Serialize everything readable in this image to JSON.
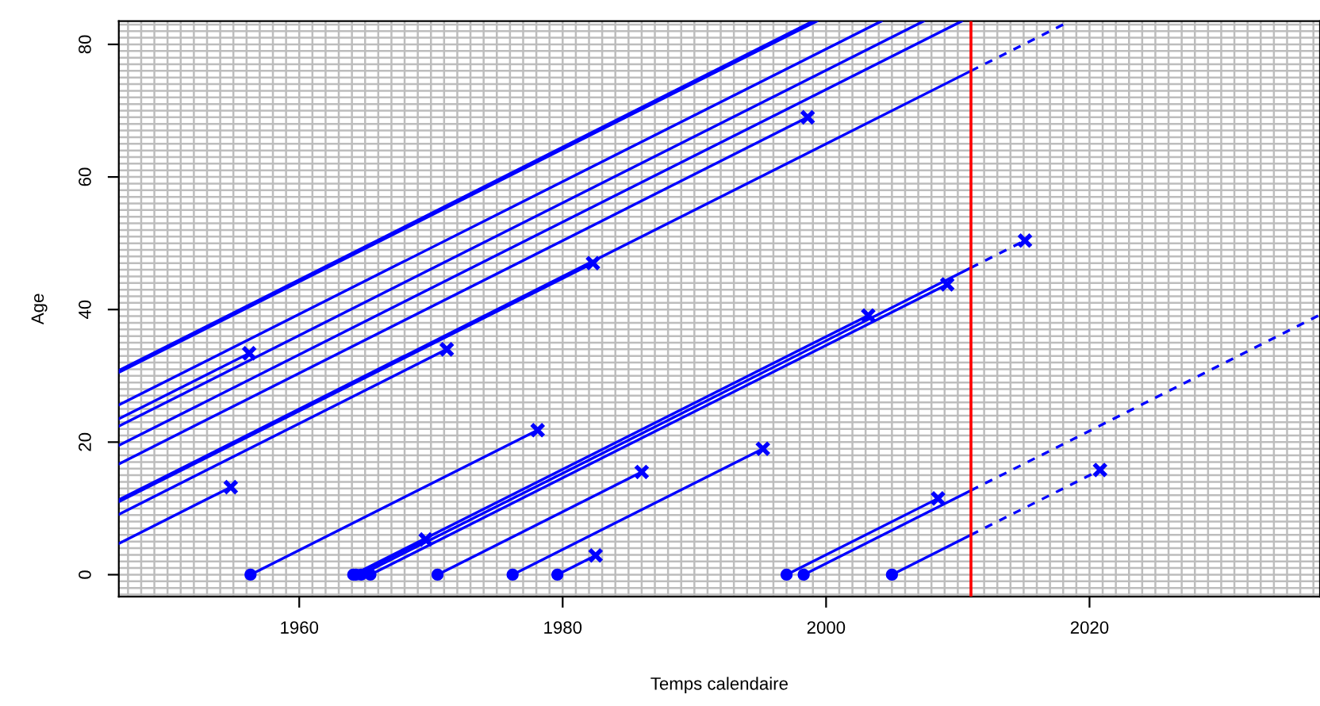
{
  "chart_data": {
    "type": "line",
    "xlabel": "Temps calendaire",
    "ylabel": "Age",
    "xlim": [
      1946.3,
      2037.5
    ],
    "ylim": [
      -3.3,
      83.5
    ],
    "xticks": [
      1960,
      1980,
      2000,
      2020
    ],
    "yticks": [
      0,
      20,
      40,
      60,
      80
    ],
    "grid": true,
    "ref_lines": [
      {
        "axis": "x",
        "value": 2011,
        "color": "#ff0000"
      }
    ],
    "series": [
      {
        "color": "#0000ff",
        "line_style": "solid",
        "x": [
          1946.3,
          1999.0
        ],
        "values": [
          30.8,
          83.5
        ]
      },
      {
        "color": "#0000ff",
        "line_style": "solid",
        "x": [
          1946.3,
          1999.3
        ],
        "values": [
          30.5,
          83.5
        ]
      },
      {
        "color": "#0000ff",
        "line_style": "solid",
        "x": [
          1946.3,
          2004.2
        ],
        "values": [
          25.6,
          83.5
        ]
      },
      {
        "type": "line",
        "color": "#0000ff",
        "line_style": "solid",
        "x": [
          1946.3,
          1956.2
        ],
        "values": [
          23.5,
          33.4
        ]
      },
      {
        "type": "line",
        "color": "#0000ff",
        "line_style": "solid",
        "x": [
          1946.3,
          2007.4
        ],
        "values": [
          22.4,
          83.5
        ]
      },
      {
        "type": "line",
        "color": "#0000ff",
        "line_style": "solid",
        "x": [
          1946.3,
          2010.3
        ],
        "values": [
          19.5,
          83.5
        ]
      },
      {
        "type": "line",
        "color": "#0000ff",
        "line_style": "solid",
        "x": [
          1946.3,
          1998.6
        ],
        "values": [
          16.7,
          69
        ]
      },
      {
        "type": "line",
        "color": "#0000ff",
        "line_style": "solid",
        "x": [
          1946.3,
          2011
        ],
        "values": [
          11.3,
          76
        ]
      },
      {
        "type": "line",
        "color": "#0000ff",
        "line_style": "dashed",
        "x": [
          2011,
          2018.5
        ],
        "values": [
          76,
          83.5
        ]
      },
      {
        "type": "line",
        "color": "#0000ff",
        "line_style": "solid",
        "x": [
          1946.3,
          1982.3
        ],
        "values": [
          11.0,
          47
        ]
      },
      {
        "type": "line",
        "color": "#0000ff",
        "line_style": "solid",
        "x": [
          1946.3,
          1971.2
        ],
        "values": [
          9.1,
          34
        ]
      },
      {
        "type": "line",
        "color": "#0000ff",
        "line_style": "solid",
        "x": [
          1946.3,
          1954.8
        ],
        "values": [
          4.7,
          13.2
        ]
      },
      {
        "type": "line",
        "color": "#0000ff",
        "line_style": "solid",
        "x": [
          1956.3,
          1978.1
        ],
        "values": [
          0,
          21.8
        ]
      },
      {
        "type": "line",
        "color": "#0000ff",
        "line_style": "solid",
        "x": [
          1964.1,
          2003.2
        ],
        "values": [
          0,
          39.1
        ]
      },
      {
        "type": "line",
        "color": "#0000ff",
        "line_style": "solid",
        "x": [
          1964.3,
          1969.6
        ],
        "values": [
          0,
          5.3
        ]
      },
      {
        "type": "line",
        "color": "#0000ff",
        "line_style": "solid",
        "x": [
          1964.7,
          2011
        ],
        "values": [
          0,
          46.3
        ]
      },
      {
        "type": "line",
        "color": "#0000ff",
        "line_style": "dashed",
        "x": [
          2011,
          2015.1
        ],
        "values": [
          46.3,
          50.4
        ]
      },
      {
        "type": "line",
        "color": "#0000ff",
        "line_style": "solid",
        "x": [
          1965.4,
          2009.2
        ],
        "values": [
          0,
          43.8
        ]
      },
      {
        "type": "line",
        "color": "#0000ff",
        "line_style": "solid",
        "x": [
          1970.5,
          1986.0
        ],
        "values": [
          0,
          15.5
        ]
      },
      {
        "type": "line",
        "color": "#0000ff",
        "line_style": "solid",
        "x": [
          1976.2,
          1995.2
        ],
        "values": [
          0,
          19
        ]
      },
      {
        "type": "line",
        "color": "#0000ff",
        "line_style": "solid",
        "x": [
          1979.6,
          1982.5
        ],
        "values": [
          0,
          2.9
        ]
      },
      {
        "type": "line",
        "color": "#0000ff",
        "line_style": "solid",
        "x": [
          1997.0,
          2008.5
        ],
        "values": [
          0,
          11.5
        ]
      },
      {
        "type": "line",
        "color": "#0000ff",
        "line_style": "solid",
        "x": [
          1998.3,
          2011
        ],
        "values": [
          0,
          12.7
        ]
      },
      {
        "type": "line",
        "color": "#0000ff",
        "line_style": "dashed",
        "x": [
          2011,
          2037.5
        ],
        "values": [
          12.7,
          39.2
        ]
      },
      {
        "type": "line",
        "color": "#0000ff",
        "line_style": "solid",
        "x": [
          2005.0,
          2011
        ],
        "values": [
          0,
          6
        ]
      },
      {
        "type": "line",
        "color": "#0000ff",
        "line_style": "dashed",
        "x": [
          2011,
          2020.8
        ],
        "values": [
          6,
          15.8
        ]
      },
      {
        "type": "scatter",
        "color": "#0000ff",
        "marker": "circle",
        "x": [
          1956.3,
          1964.1,
          1964.3,
          1964.7,
          1965.4,
          1970.5,
          1976.2,
          1979.6,
          1997.0,
          1998.3,
          2005.0
        ],
        "values": [
          0,
          0,
          0,
          0,
          0,
          0,
          0,
          0,
          0,
          0,
          0
        ]
      },
      {
        "type": "scatter",
        "color": "#0000ff",
        "marker": "cross",
        "x": [
          1954.8,
          1956.2,
          1969.6,
          1971.2,
          1978.1,
          1982.3,
          1982.5,
          1986.0,
          1995.2,
          1998.6,
          2003.2,
          2008.5,
          2009.2,
          2015.1,
          2020.8
        ],
        "values": [
          13.2,
          33.4,
          5.3,
          34,
          21.8,
          47,
          2.9,
          15.5,
          19,
          69,
          39.1,
          11.5,
          43.8,
          50.4,
          15.8
        ]
      }
    ]
  }
}
